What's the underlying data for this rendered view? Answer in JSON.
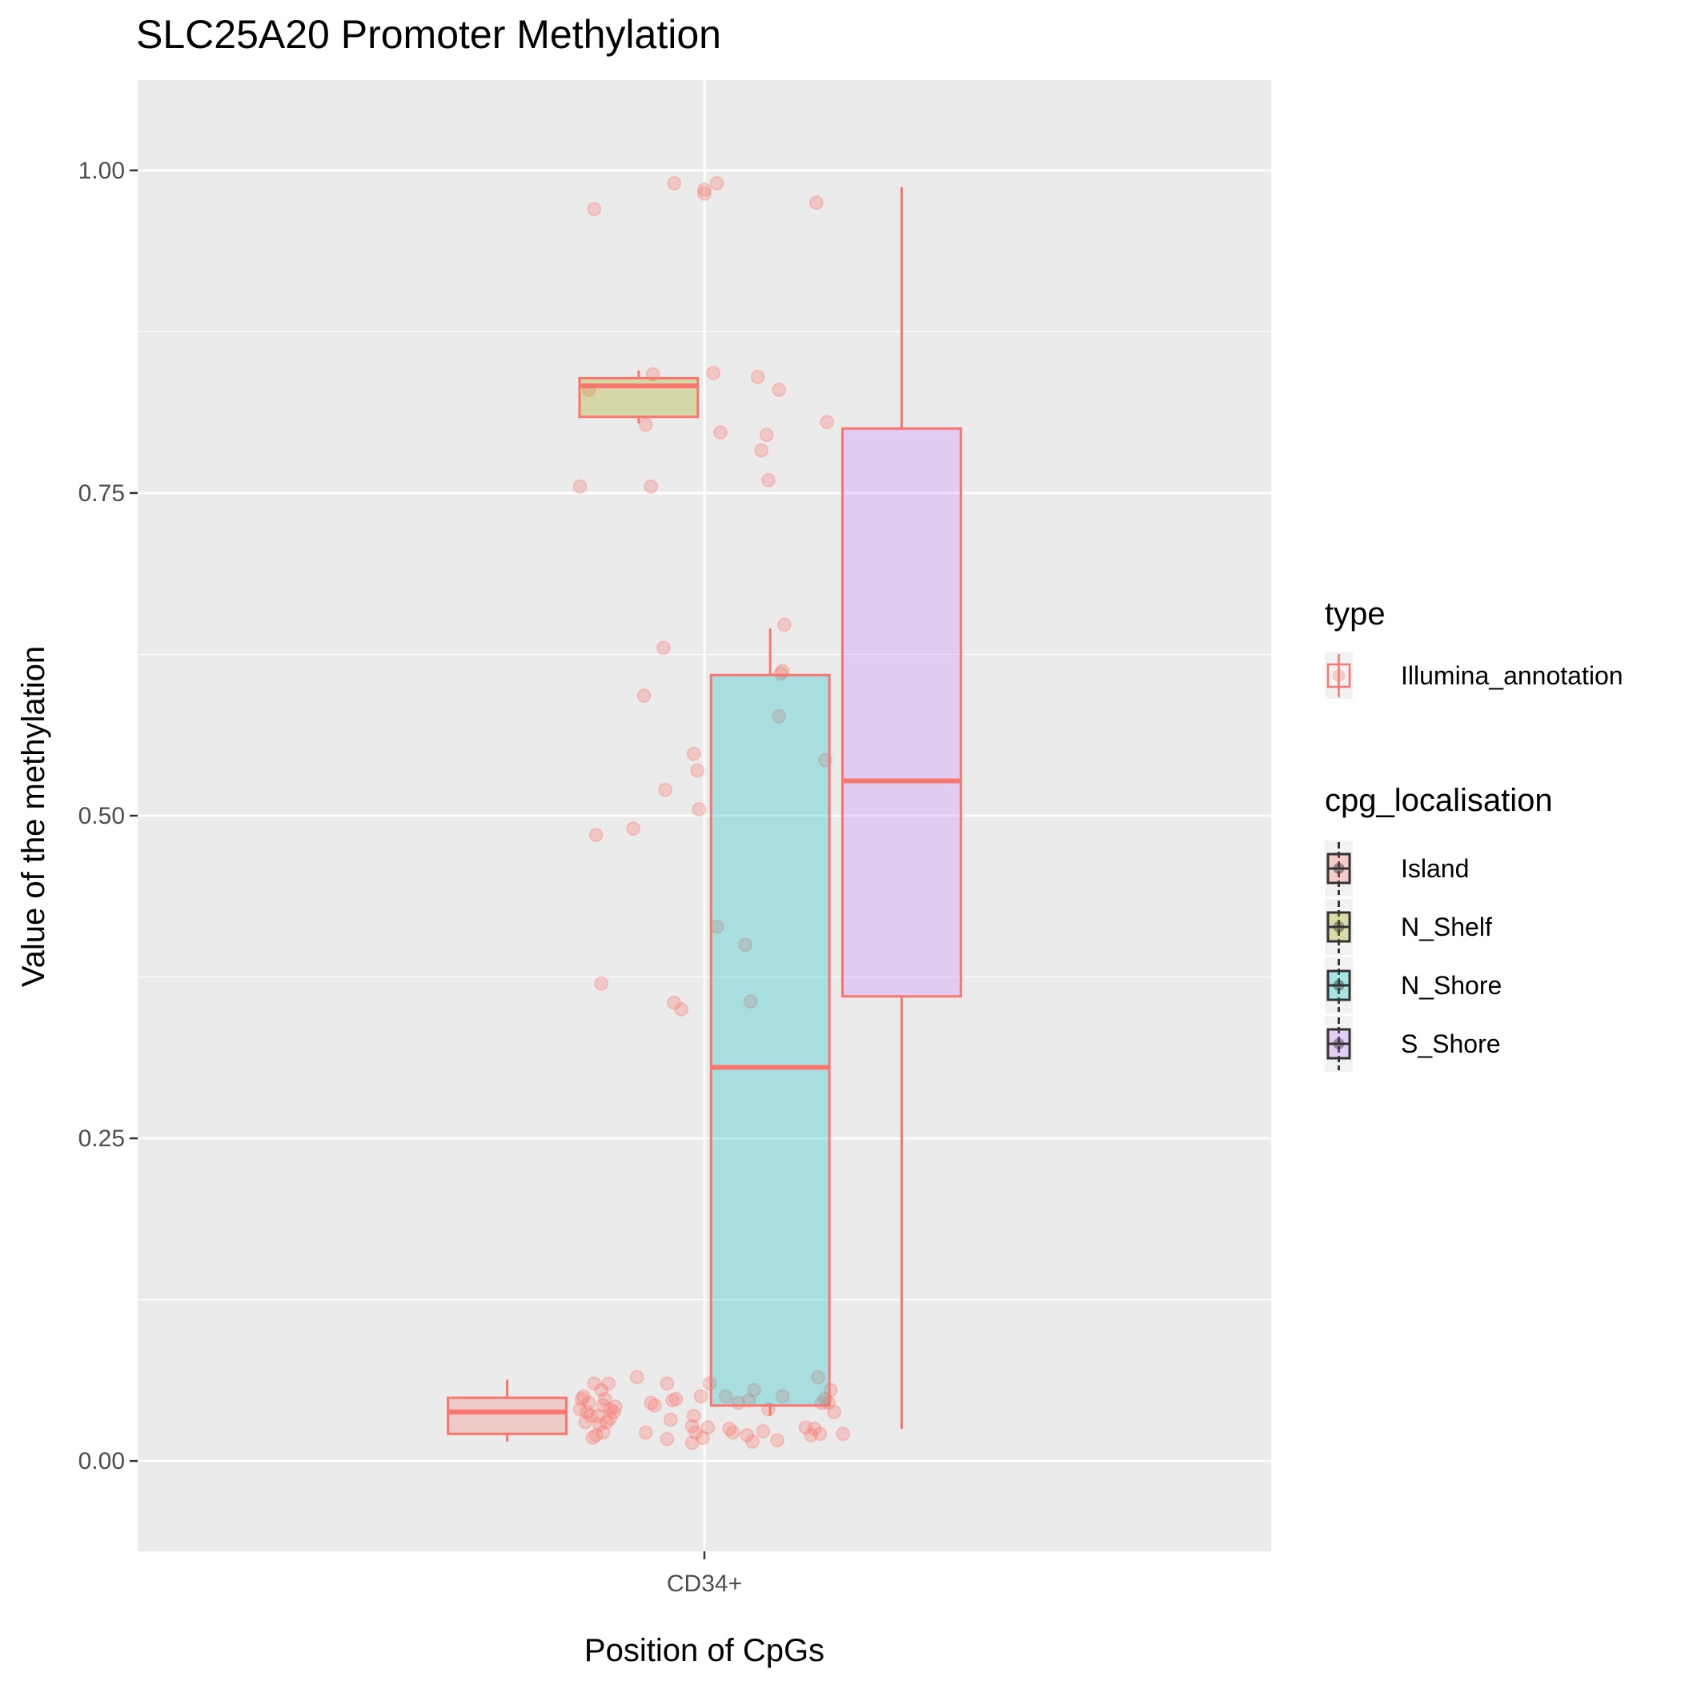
{
  "chart_data": {
    "type": "box",
    "title": "SLC25A20 Promoter Methylation",
    "xlabel": "Position of CpGs",
    "ylabel": "Value of the methylation",
    "categories": [
      "CD34+"
    ],
    "ylim": [
      -0.07,
      1.07
    ],
    "yticks": [
      0.0,
      0.25,
      0.5,
      0.75,
      1.0
    ],
    "ytick_labels": [
      "0.00",
      "0.25",
      "0.50",
      "0.75",
      "1.00"
    ],
    "grid": true,
    "legend_position": "right",
    "legends": [
      {
        "title": "type",
        "entries": [
          {
            "label": "Illumina_annotation",
            "color": "#F8766D"
          }
        ]
      },
      {
        "title": "cpg_localisation",
        "entries": [
          {
            "label": "Island",
            "color": "#F8766D"
          },
          {
            "label": "N_Shelf",
            "color": "#A3A500"
          },
          {
            "label": "N_Shore",
            "color": "#00BFC4"
          },
          {
            "label": "S_Shore",
            "color": "#C77CFF"
          }
        ]
      }
    ],
    "series": [
      {
        "name": "Island",
        "category": "CD34+",
        "fill": "#F8766D",
        "stroke": "#F8766D",
        "whisker_low": 0.015,
        "q1": 0.021,
        "median": 0.038,
        "q3": 0.049,
        "whisker_high": 0.063,
        "points": [
          [
            -0.62,
            0.97
          ],
          [
            -0.65,
            0.83
          ],
          [
            -0.7,
            0.755
          ],
          [
            -0.58,
            0.37
          ],
          [
            -0.61,
            0.485
          ],
          [
            -0.68,
            0.05
          ],
          [
            -0.65,
            0.045
          ],
          [
            -0.62,
            0.06
          ],
          [
            -0.58,
            0.055
          ],
          [
            -0.54,
            0.06
          ],
          [
            -0.56,
            0.048
          ],
          [
            -0.7,
            0.04
          ],
          [
            -0.66,
            0.038
          ],
          [
            -0.6,
            0.035
          ],
          [
            -0.55,
            0.03
          ],
          [
            -0.53,
            0.04
          ],
          [
            -0.5,
            0.042
          ],
          [
            -0.67,
            0.03
          ],
          [
            -0.61,
            0.02
          ],
          [
            -0.57,
            0.022
          ],
          [
            -0.63,
            0.018
          ],
          [
            -0.59,
            0.028
          ],
          [
            -0.51,
            0.038
          ],
          [
            -0.64,
            0.035
          ],
          [
            -0.69,
            0.048
          ],
          [
            -0.57,
            0.043
          ],
          [
            -0.53,
            0.033
          ]
        ]
      },
      {
        "name": "N_Shelf",
        "category": "CD34+",
        "fill": "#A3A500",
        "stroke": "#F8766D",
        "whisker_low": 0.804,
        "q1": 0.809,
        "median": 0.833,
        "q3": 0.839,
        "whisker_high": 0.845,
        "points": [
          [
            -0.29,
            0.842
          ],
          [
            -0.33,
            0.803
          ],
          [
            -0.3,
            0.755
          ],
          [
            -0.34,
            0.593
          ],
          [
            -0.4,
            0.49
          ],
          [
            -0.23,
            0.63
          ],
          [
            -0.22,
            0.52
          ],
          [
            -0.17,
            0.99
          ],
          [
            -0.17,
            0.355
          ],
          [
            -0.13,
            0.35
          ],
          [
            -0.38,
            0.065
          ],
          [
            -0.3,
            0.045
          ],
          [
            -0.28,
            0.043
          ],
          [
            -0.21,
            0.06
          ],
          [
            -0.18,
            0.047
          ],
          [
            -0.16,
            0.048
          ],
          [
            -0.19,
            0.032
          ],
          [
            -0.33,
            0.022
          ],
          [
            -0.21,
            0.017
          ]
        ]
      },
      {
        "name": "N_Shore",
        "category": "CD34+",
        "fill": "#00BFC4",
        "stroke": "#F8766D",
        "whisker_low": 0.035,
        "q1": 0.043,
        "median": 0.305,
        "q3": 0.609,
        "whisker_high": 0.645,
        "points": [
          [
            0.0,
            0.985
          ],
          [
            0.0,
            0.982
          ],
          [
            0.07,
            0.99
          ],
          [
            0.05,
            0.843
          ],
          [
            0.09,
            0.797
          ],
          [
            0.3,
            0.84
          ],
          [
            0.42,
            0.83
          ],
          [
            0.32,
            0.783
          ],
          [
            0.35,
            0.795
          ],
          [
            0.36,
            0.76
          ],
          [
            0.45,
            0.648
          ],
          [
            0.43,
            0.61
          ],
          [
            0.44,
            0.612
          ],
          [
            0.42,
            0.577
          ],
          [
            -0.06,
            0.548
          ],
          [
            -0.04,
            0.535
          ],
          [
            -0.03,
            0.505
          ],
          [
            0.07,
            0.414
          ],
          [
            0.23,
            0.4
          ],
          [
            0.26,
            0.356
          ],
          [
            -0.02,
            0.05
          ],
          [
            0.03,
            0.06
          ],
          [
            0.12,
            0.05
          ],
          [
            0.19,
            0.045
          ],
          [
            0.25,
            0.047
          ],
          [
            0.28,
            0.055
          ],
          [
            0.44,
            0.05
          ],
          [
            0.36,
            0.04
          ],
          [
            -0.07,
            0.027
          ],
          [
            -0.05,
            0.022
          ],
          [
            -0.01,
            0.018
          ],
          [
            0.02,
            0.026
          ],
          [
            0.14,
            0.025
          ],
          [
            0.16,
            0.022
          ],
          [
            0.24,
            0.02
          ],
          [
            0.27,
            0.015
          ],
          [
            0.33,
            0.023
          ],
          [
            0.41,
            0.016
          ],
          [
            -0.07,
            0.014
          ],
          [
            -0.06,
            0.035
          ]
        ]
      },
      {
        "name": "S_Shore",
        "category": "CD34+",
        "fill": "#C77CFF",
        "stroke": "#F8766D",
        "whisker_low": 0.025,
        "q1": 0.36,
        "median": 0.527,
        "q3": 0.8,
        "whisker_high": 0.987,
        "points": [
          [
            0.63,
            0.975
          ],
          [
            0.69,
            0.805
          ],
          [
            0.68,
            0.543
          ],
          [
            0.64,
            0.065
          ],
          [
            0.66,
            0.045
          ],
          [
            0.68,
            0.048
          ],
          [
            0.71,
            0.055
          ],
          [
            0.73,
            0.038
          ],
          [
            0.62,
            0.025
          ],
          [
            0.65,
            0.021
          ],
          [
            0.6,
            0.02
          ],
          [
            0.57,
            0.026
          ],
          [
            0.7,
            0.045
          ],
          [
            0.78,
            0.021
          ]
        ]
      }
    ]
  }
}
